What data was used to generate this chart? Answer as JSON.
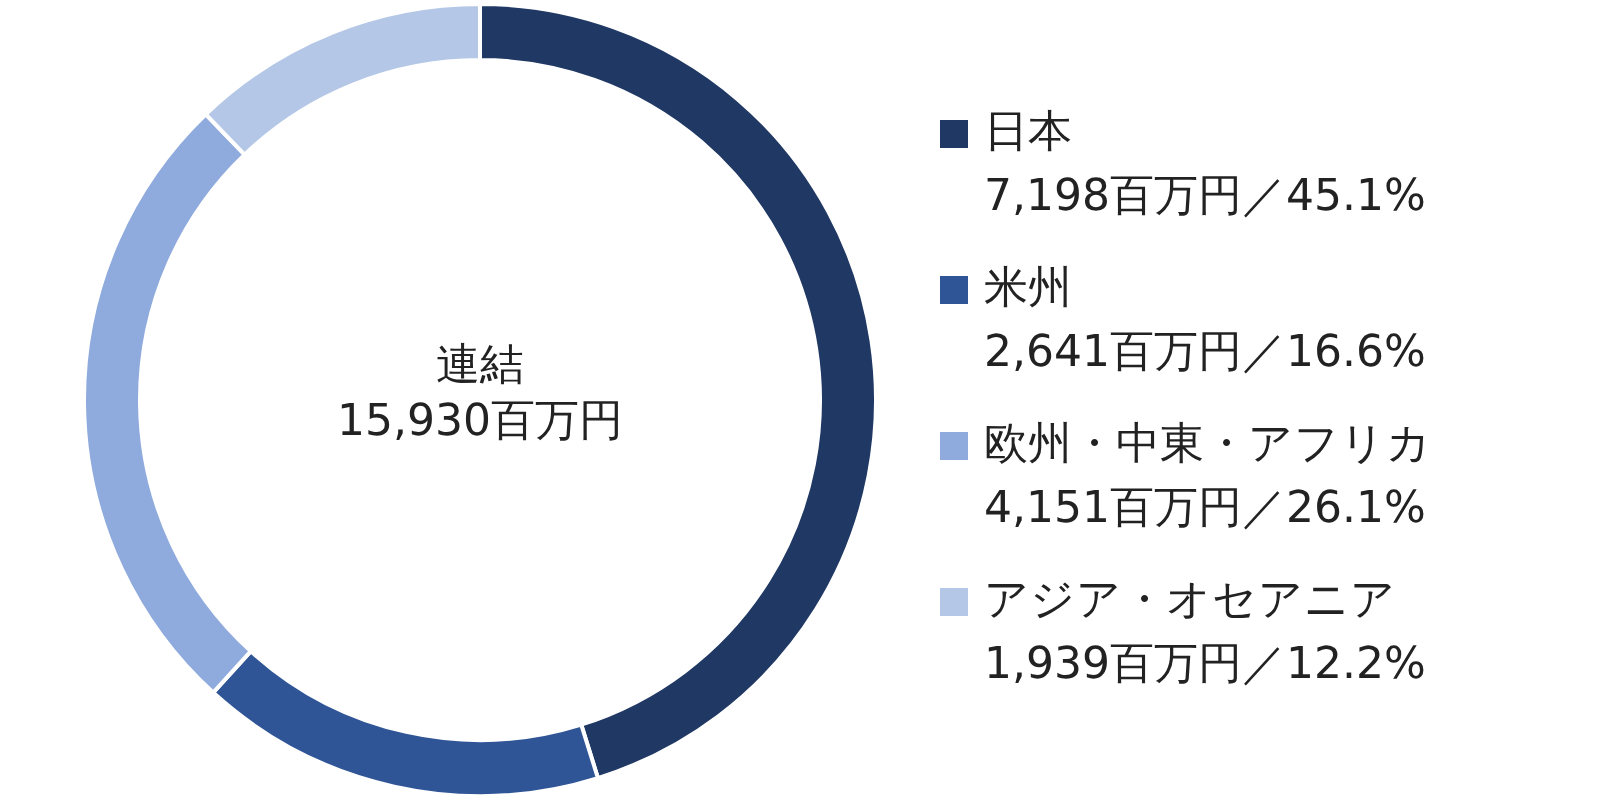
{
  "chart_data": {
    "type": "donut",
    "categories": [
      "日本",
      "米州",
      "欧州・中東・アフリカ",
      "アジア・オセアニア"
    ],
    "values": [
      7198,
      2641,
      4151,
      1939
    ],
    "colors": [
      "#203864",
      "#2f5597",
      "#8faadc",
      "#b4c7e7"
    ],
    "value_labels": [
      "7,198百万円／45.1%",
      "2,641百万円／16.6%",
      "4,151百万円／26.1%",
      "1,939百万円／12.2%"
    ],
    "annotations": [
      "連結",
      "15,930百万円"
    ],
    "legend": "right"
  }
}
